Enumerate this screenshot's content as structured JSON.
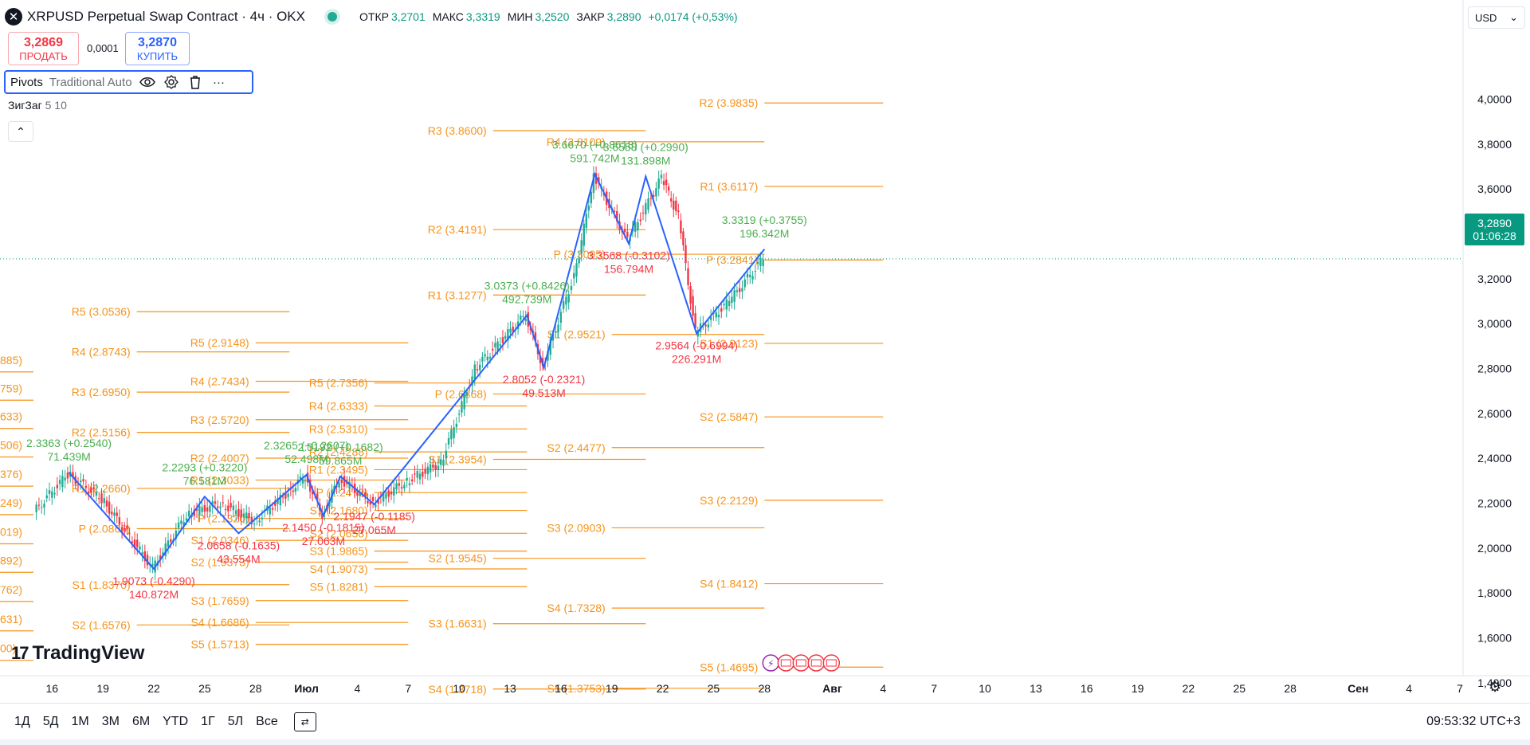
{
  "header": {
    "symbol_icon": "x-logo-icon",
    "title": "XRPUSD Perpetual Swap Contract · 4ч · OKX",
    "ohlc": [
      {
        "label": "ОТКР",
        "value": "3,2701"
      },
      {
        "label": "МАКС",
        "value": "3,3319"
      },
      {
        "label": "МИН",
        "value": "3,2520"
      },
      {
        "label": "ЗАКР",
        "value": "3,2890"
      }
    ],
    "change": "+0,0174 (+0,53%)",
    "colors": {
      "up": "#089981",
      "down": "#f23645",
      "accent": "#2962ff"
    }
  },
  "trade": {
    "sell_price": "3,2869",
    "sell_label": "ПРОДАТЬ",
    "spread": "0,0001",
    "buy_price": "3,2870",
    "buy_label": "КУПИТЬ"
  },
  "indicators": {
    "pivots_name": "Pivots",
    "pivots_params": "Traditional Auto",
    "icons": [
      "eye-icon",
      "gear-icon",
      "trash-icon",
      "more-icon"
    ],
    "zigzag_name": "ЗигЗаг",
    "zigzag_params": "5 10",
    "collapse_icon": "chevron-up-icon"
  },
  "currency": {
    "value": "USD",
    "icon": "chevron-down-icon"
  },
  "last_price": {
    "price": "3,2890",
    "countdown": "01:06:28"
  },
  "logo": {
    "text": "TradingView"
  },
  "bottom_bar": {
    "timeframes": [
      "1Д",
      "5Д",
      "1М",
      "3М",
      "6М",
      "YTD",
      "1Г",
      "5Л",
      "Все"
    ],
    "compare_icon": "compare-icon",
    "clock": "09:53:32 UTC+3",
    "settings_icon": "gear-icon"
  },
  "chart_data": {
    "type": "candlestick",
    "x_axis": {
      "tick_labels": [
        "16",
        "19",
        "22",
        "25",
        "28",
        "Июл",
        "4",
        "7",
        "10",
        "13",
        "16",
        "19",
        "22",
        "25",
        "28",
        "Авг",
        "4",
        "7",
        "10",
        "13",
        "16",
        "19",
        "22",
        "25",
        "28",
        "Сен",
        "4",
        "7"
      ],
      "range": [
        "2025-06-15",
        "2025-09-07"
      ]
    },
    "y_axis": {
      "tick_labels": [
        "4,0000",
        "3,8000",
        "3,6000",
        "3,4000",
        "3,2000",
        "3,0000",
        "2,8000",
        "2,6000",
        "2,4000",
        "2,2000",
        "2,0000",
        "1,8000",
        "1,6000",
        "1,4000"
      ],
      "range": [
        1.3,
        4.24
      ]
    },
    "price_path": [
      {
        "x": "2025-06-15",
        "y": 2.16
      },
      {
        "x": "2025-06-17",
        "y": 2.33
      },
      {
        "x": "2025-06-19",
        "y": 2.22
      },
      {
        "x": "2025-06-22",
        "y": 1.91
      },
      {
        "x": "2025-06-24",
        "y": 2.15
      },
      {
        "x": "2025-06-26",
        "y": 2.2
      },
      {
        "x": "2025-06-28",
        "y": 2.12
      },
      {
        "x": "2025-06-30",
        "y": 2.25
      },
      {
        "x": "2025-07-01",
        "y": 2.32
      },
      {
        "x": "2025-07-02",
        "y": 2.15
      },
      {
        "x": "2025-07-03",
        "y": 2.31
      },
      {
        "x": "2025-07-05",
        "y": 2.2
      },
      {
        "x": "2025-07-07",
        "y": 2.3
      },
      {
        "x": "2025-07-09",
        "y": 2.38
      },
      {
        "x": "2025-07-11",
        "y": 2.8
      },
      {
        "x": "2025-07-14",
        "y": 3.04
      },
      {
        "x": "2025-07-15",
        "y": 2.81
      },
      {
        "x": "2025-07-17",
        "y": 3.25
      },
      {
        "x": "2025-07-18",
        "y": 3.66
      },
      {
        "x": "2025-07-20",
        "y": 3.37
      },
      {
        "x": "2025-07-22",
        "y": 3.65
      },
      {
        "x": "2025-07-23",
        "y": 3.48
      },
      {
        "x": "2025-07-24",
        "y": 2.96
      },
      {
        "x": "2025-07-26",
        "y": 3.1
      },
      {
        "x": "2025-07-28",
        "y": 3.29
      }
    ],
    "zigzag": [
      {
        "x": "2025-06-17",
        "y": 2.3363
      },
      {
        "x": "2025-06-22",
        "y": 1.9073
      },
      {
        "x": "2025-06-25",
        "y": 2.2293
      },
      {
        "x": "2025-06-27",
        "y": 2.0658
      },
      {
        "x": "2025-07-01",
        "y": 2.3265
      },
      {
        "x": "2025-07-02",
        "y": 2.145
      },
      {
        "x": "2025-07-03",
        "y": 2.3192
      },
      {
        "x": "2025-07-05",
        "y": 2.1947
      },
      {
        "x": "2025-07-14",
        "y": 3.0373
      },
      {
        "x": "2025-07-15",
        "y": 2.8052
      },
      {
        "x": "2025-07-18",
        "y": 3.667
      },
      {
        "x": "2025-07-20",
        "y": 3.3568
      },
      {
        "x": "2025-07-21",
        "y": 3.6558
      },
      {
        "x": "2025-07-24",
        "y": 2.9564
      },
      {
        "x": "2025-07-28",
        "y": 3.3319
      }
    ],
    "zigzag_labels": [
      {
        "x": "2025-06-17",
        "y": 2.3363,
        "label": "2.3363 (+0.2540)",
        "vol": "71.439M",
        "dir": "up"
      },
      {
        "x": "2025-06-22",
        "y": 1.9073,
        "label": "1.9073 (-0.4290)",
        "vol": "140.872M",
        "dir": "down"
      },
      {
        "x": "2025-06-25",
        "y": 2.2293,
        "label": "2.2293 (+0.3220)",
        "vol": "76.581M",
        "dir": "up"
      },
      {
        "x": "2025-06-27",
        "y": 2.0658,
        "label": "2.0658 (-0.1635)",
        "vol": "43.554M",
        "dir": "down"
      },
      {
        "x": "2025-07-01",
        "y": 2.3265,
        "label": "2.3265 (+0.2607)",
        "vol": "52.498M",
        "dir": "up"
      },
      {
        "x": "2025-07-02",
        "y": 2.145,
        "label": "2.1450 (-0.1815)",
        "vol": "27.063M",
        "dir": "down"
      },
      {
        "x": "2025-07-03",
        "y": 2.3192,
        "label": "2.3192 (+0.1682)",
        "vol": "59.865M",
        "dir": "up"
      },
      {
        "x": "2025-07-05",
        "y": 2.1947,
        "label": "2.1947 (-0.1185)",
        "vol": "27.065M",
        "dir": "down"
      },
      {
        "x": "2025-07-14",
        "y": 3.0373,
        "label": "3.0373 (+0.8426)",
        "vol": "492.739M",
        "dir": "up"
      },
      {
        "x": "2025-07-15",
        "y": 2.8052,
        "label": "2.8052 (-0.2321)",
        "vol": "49.513M",
        "dir": "down"
      },
      {
        "x": "2025-07-18",
        "y": 3.667,
        "label": "3.6670 (+0.8618)",
        "vol": "591.742M",
        "dir": "up"
      },
      {
        "x": "2025-07-20",
        "y": 3.3568,
        "label": "3.3568 (-0.3102)",
        "vol": "156.794M",
        "dir": "down"
      },
      {
        "x": "2025-07-21",
        "y": 3.6558,
        "label": "3.6558 (+0.2990)",
        "vol": "131.898M",
        "dir": "up"
      },
      {
        "x": "2025-07-24",
        "y": 2.9564,
        "label": "2.9564 (-0.6994)",
        "vol": "226.291M",
        "dir": "down"
      },
      {
        "x": "2025-07-28",
        "y": 3.3319,
        "label": "3.3319 (+0.3755)",
        "vol": "196.342M",
        "dir": "up"
      }
    ],
    "pivots": [
      {
        "label": "R5 (3.0536)",
        "y": 3.0536,
        "from": "2025-06-21",
        "to": "2025-06-30"
      },
      {
        "label": "R4 (2.8743)",
        "y": 2.8743,
        "from": "2025-06-21",
        "to": "2025-06-30"
      },
      {
        "label": "R3 (2.6950)",
        "y": 2.695,
        "from": "2025-06-21",
        "to": "2025-06-30"
      },
      {
        "label": "R2 (2.5156)",
        "y": 2.5156,
        "from": "2025-06-21",
        "to": "2025-06-30"
      },
      {
        "label": "R1 (2.2660)",
        "y": 2.266,
        "from": "2025-06-21",
        "to": "2025-06-30"
      },
      {
        "label": "P (2.0866)",
        "y": 2.0866,
        "from": "2025-06-21",
        "to": "2025-06-30"
      },
      {
        "label": "S1 (1.8370)",
        "y": 1.837,
        "from": "2025-06-21",
        "to": "2025-06-30"
      },
      {
        "label": "S2 (1.6576)",
        "y": 1.6576,
        "from": "2025-06-21",
        "to": "2025-06-30"
      },
      {
        "label": "R5 (2.9148)",
        "y": 2.9148,
        "from": "2025-06-28",
        "to": "2025-07-07"
      },
      {
        "label": "R4 (2.7434)",
        "y": 2.7434,
        "from": "2025-06-28",
        "to": "2025-07-07"
      },
      {
        "label": "R3 (2.5720)",
        "y": 2.572,
        "from": "2025-06-28",
        "to": "2025-07-07"
      },
      {
        "label": "R2 (2.4007)",
        "y": 2.4007,
        "from": "2025-06-28",
        "to": "2025-07-07"
      },
      {
        "label": "R1 (2.3033)",
        "y": 2.3033,
        "from": "2025-06-28",
        "to": "2025-07-07"
      },
      {
        "label": "P (2.1320)",
        "y": 2.132,
        "from": "2025-06-28",
        "to": "2025-07-07"
      },
      {
        "label": "S1 (2.0346)",
        "y": 2.0346,
        "from": "2025-06-28",
        "to": "2025-07-07"
      },
      {
        "label": "S2 (1.9373)",
        "y": 1.9373,
        "from": "2025-06-28",
        "to": "2025-07-07"
      },
      {
        "label": "S3 (1.7659)",
        "y": 1.7659,
        "from": "2025-06-28",
        "to": "2025-07-07"
      },
      {
        "label": "S4 (1.6686)",
        "y": 1.6686,
        "from": "2025-06-28",
        "to": "2025-07-07"
      },
      {
        "label": "S5 (1.5713)",
        "y": 1.5713,
        "from": "2025-06-28",
        "to": "2025-07-07"
      },
      {
        "label": "R5 (2.7356)",
        "y": 2.7356,
        "from": "2025-07-05",
        "to": "2025-07-14"
      },
      {
        "label": "R4 (2.6333)",
        "y": 2.6333,
        "from": "2025-07-05",
        "to": "2025-07-14"
      },
      {
        "label": "R3 (2.5310)",
        "y": 2.531,
        "from": "2025-07-05",
        "to": "2025-07-14"
      },
      {
        "label": "R2 (2.4288)",
        "y": 2.4288,
        "from": "2025-07-05",
        "to": "2025-07-14"
      },
      {
        "label": "R1 (2.3495)",
        "y": 2.3495,
        "from": "2025-07-05",
        "to": "2025-07-14"
      },
      {
        "label": "P (2.2473)",
        "y": 2.2473,
        "from": "2025-07-05",
        "to": "2025-07-14"
      },
      {
        "label": "S1 (2.1680)",
        "y": 2.168,
        "from": "2025-07-05",
        "to": "2025-07-14"
      },
      {
        "label": "S2 (2.0658)",
        "y": 2.0658,
        "from": "2025-07-05",
        "to": "2025-07-14"
      },
      {
        "label": "S3 (1.9865)",
        "y": 1.9865,
        "from": "2025-07-05",
        "to": "2025-07-14"
      },
      {
        "label": "S4 (1.9073)",
        "y": 1.9073,
        "from": "2025-07-05",
        "to": "2025-07-14"
      },
      {
        "label": "S5 (1.8281)",
        "y": 1.8281,
        "from": "2025-07-05",
        "to": "2025-07-14"
      },
      {
        "label": "R3 (3.8600)",
        "y": 3.86,
        "from": "2025-07-12",
        "to": "2025-07-21"
      },
      {
        "label": "R2 (3.4191)",
        "y": 3.4191,
        "from": "2025-07-12",
        "to": "2025-07-21"
      },
      {
        "label": "R1 (3.1277)",
        "y": 3.1277,
        "from": "2025-07-12",
        "to": "2025-07-21"
      },
      {
        "label": "P (2.6868)",
        "y": 2.6868,
        "from": "2025-07-12",
        "to": "2025-07-21"
      },
      {
        "label": "S1 (2.3954)",
        "y": 2.3954,
        "from": "2025-07-12",
        "to": "2025-07-21"
      },
      {
        "label": "S2 (1.9545)",
        "y": 1.9545,
        "from": "2025-07-12",
        "to": "2025-07-21"
      },
      {
        "label": "S3 (1.6631)",
        "y": 1.6631,
        "from": "2025-07-12",
        "to": "2025-07-21"
      },
      {
        "label": "S4 (1.3718)",
        "y": 1.3718,
        "from": "2025-07-12",
        "to": "2025-07-21"
      },
      {
        "label": "R4 (3.8109)",
        "y": 3.8109,
        "from": "2025-07-19",
        "to": "2025-07-28"
      },
      {
        "label": "P (3.3095)",
        "y": 3.3095,
        "from": "2025-07-19",
        "to": "2025-07-28"
      },
      {
        "label": "S1 (2.9521)",
        "y": 2.9521,
        "from": "2025-07-19",
        "to": "2025-07-28"
      },
      {
        "label": "S2 (2.4477)",
        "y": 2.4477,
        "from": "2025-07-19",
        "to": "2025-07-28"
      },
      {
        "label": "S3 (2.0903)",
        "y": 2.0903,
        "from": "2025-07-19",
        "to": "2025-07-28"
      },
      {
        "label": "S4 (1.7328)",
        "y": 1.7328,
        "from": "2025-07-19",
        "to": "2025-07-28"
      },
      {
        "label": "S5 (1.3753)",
        "y": 1.3753,
        "from": "2025-07-19",
        "to": "2025-07-28"
      },
      {
        "label": "R2 (3.9835)",
        "y": 3.9835,
        "from": "2025-07-28",
        "to": "2025-08-04"
      },
      {
        "label": "R1 (3.6117)",
        "y": 3.6117,
        "from": "2025-07-28",
        "to": "2025-08-04"
      },
      {
        "label": "P (3.2841)",
        "y": 3.2841,
        "from": "2025-07-28",
        "to": "2025-08-04"
      },
      {
        "label": "S1 (2.9123)",
        "y": 2.9123,
        "from": "2025-07-28",
        "to": "2025-08-04"
      },
      {
        "label": "S2 (2.5847)",
        "y": 2.5847,
        "from": "2025-07-28",
        "to": "2025-08-04"
      },
      {
        "label": "S3 (2.2129)",
        "y": 2.2129,
        "from": "2025-07-28",
        "to": "2025-08-04"
      },
      {
        "label": "S4 (1.8412)",
        "y": 1.8412,
        "from": "2025-07-28",
        "to": "2025-08-04"
      },
      {
        "label": "S5 (1.4695)",
        "y": 1.4695,
        "from": "2025-07-28",
        "to": "2025-08-04"
      }
    ],
    "left_edge_labels": [
      "885)",
      "759)",
      "633)",
      "506)",
      "376)",
      "249)",
      "019)",
      "892)",
      "762)",
      "631)",
      "00)"
    ],
    "current_price_line": 3.289,
    "event_icons": [
      "lightning-icon",
      "us-flag-icon",
      "us-flag-icon",
      "us-flag-icon",
      "us-flag-icon"
    ],
    "grid": false
  }
}
